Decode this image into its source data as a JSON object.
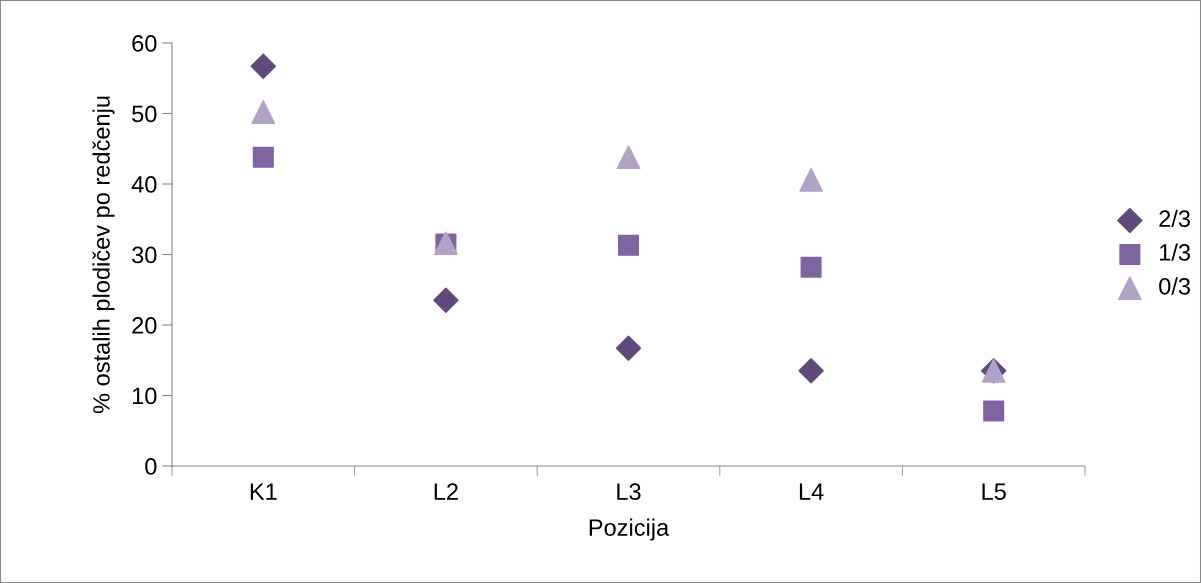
{
  "chart_data": {
    "type": "scatter",
    "xlabel": "Pozicija",
    "ylabel": "% ostalih plodičev po redčenju",
    "categories": [
      "K1",
      "L2",
      "L3",
      "L4",
      "L5"
    ],
    "series": [
      {
        "name": "2/3",
        "color": "#604a7b",
        "marker": "diamond",
        "values": [
          56.7,
          23.5,
          16.7,
          13.5,
          13.5
        ]
      },
      {
        "name": "1/3",
        "color": "#8064a2",
        "marker": "square",
        "values": [
          43.8,
          31.5,
          31.3,
          28.2,
          7.8
        ]
      },
      {
        "name": "0/3",
        "color": "#b3a2c7",
        "marker": "triangle",
        "values": [
          50.2,
          31.6,
          43.8,
          40.6,
          13.5
        ]
      }
    ],
    "ylim": [
      0,
      60
    ],
    "yticks": [
      0,
      10,
      20,
      30,
      40,
      50,
      60
    ],
    "grid": false,
    "legend": "right"
  }
}
